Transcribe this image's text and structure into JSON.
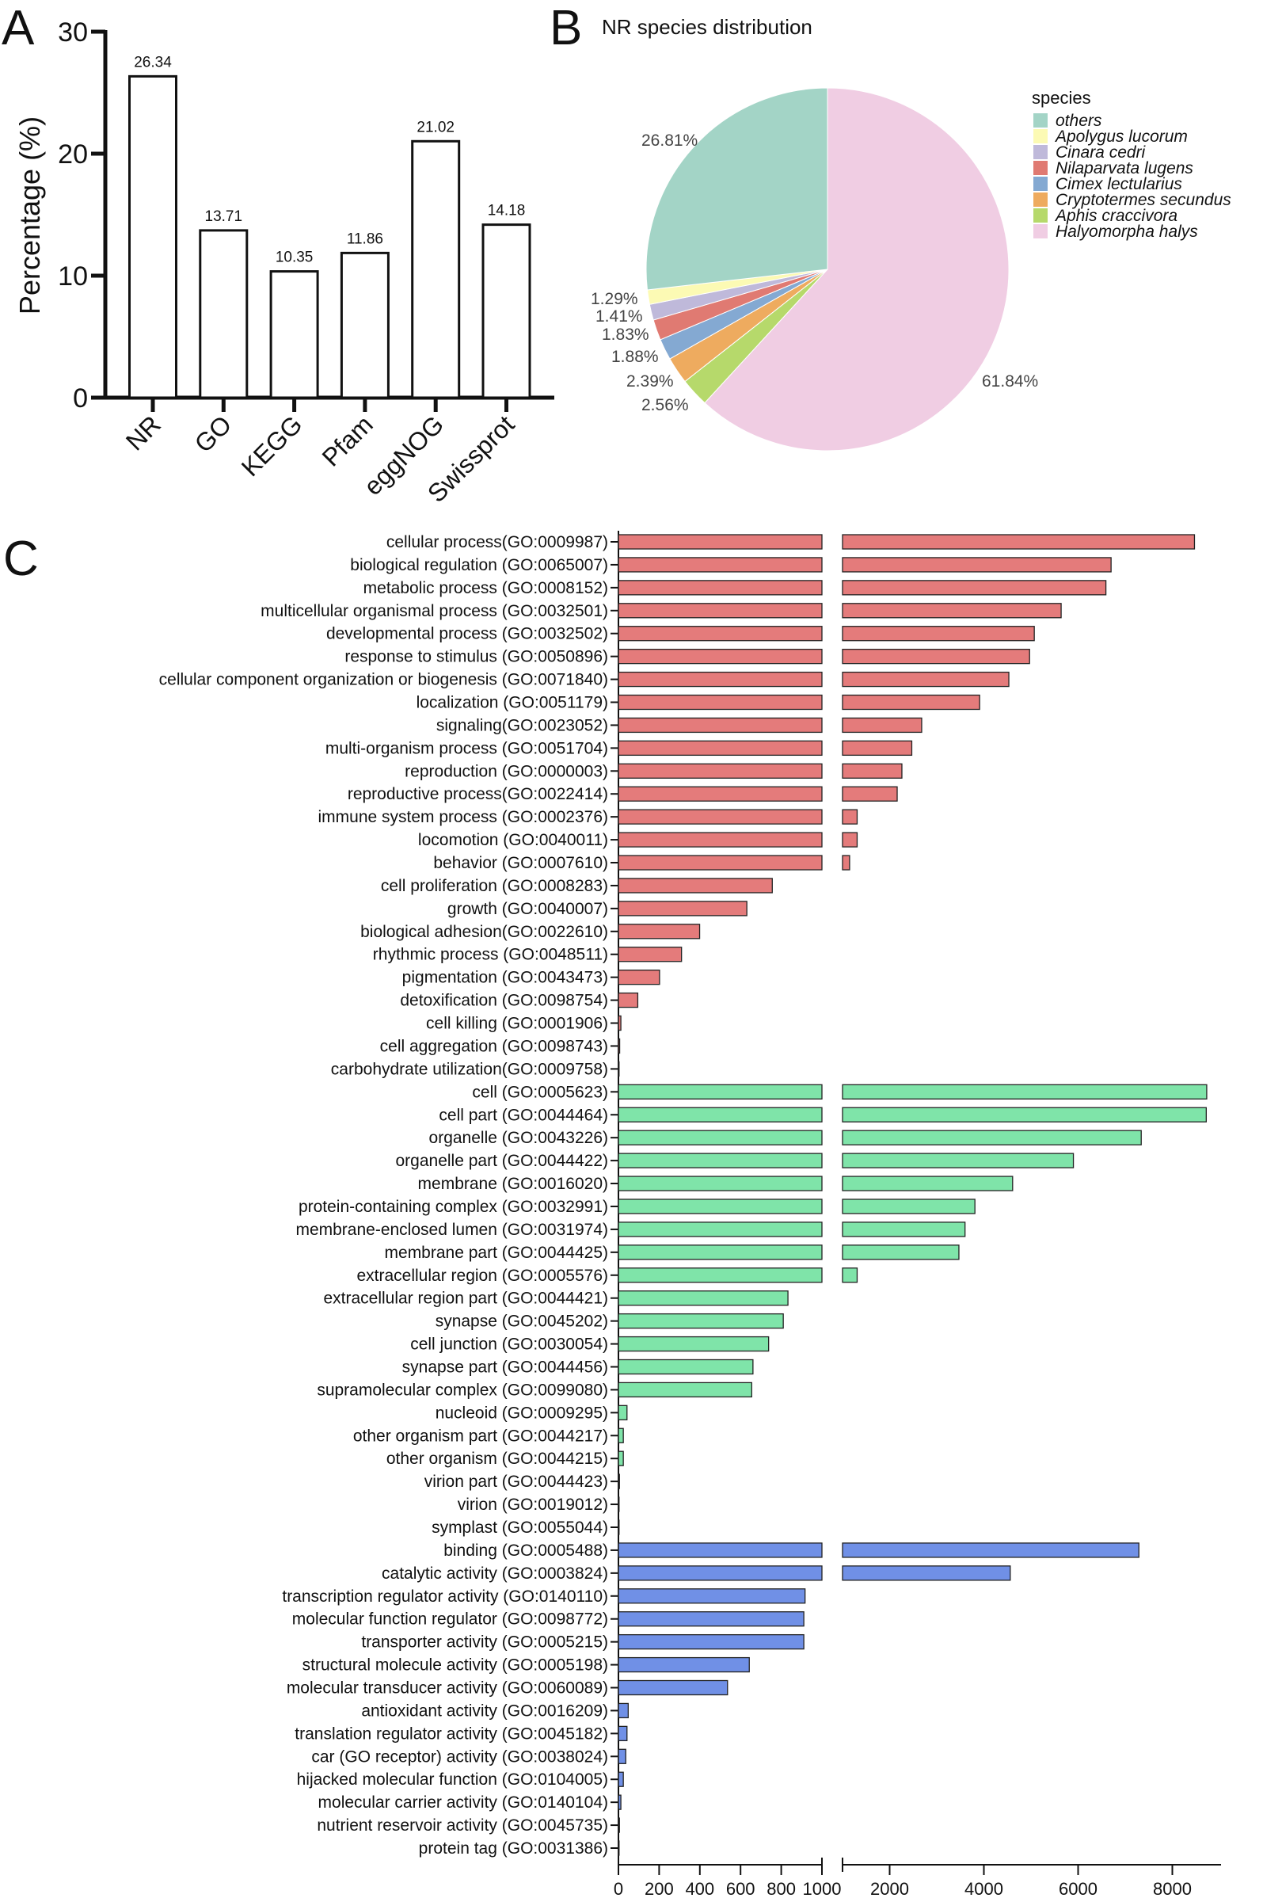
{
  "panels": {
    "a": "A",
    "b": "B",
    "c": "C"
  },
  "chart_data": [
    {
      "type": "bar",
      "title": "",
      "xlabel": "",
      "ylabel": "Percentage (%)",
      "ylim": [
        0,
        30
      ],
      "yticks": [
        "0",
        "10",
        "20",
        "30"
      ],
      "categories": [
        "NR",
        "GO",
        "KEGG",
        "Pfam",
        "eggNOG",
        "Swissprot"
      ],
      "values": [
        26.34,
        13.71,
        10.35,
        11.86,
        21.02,
        14.18
      ],
      "value_labels": [
        "26.34",
        "13.71",
        "10.35",
        "11.86",
        "21.02",
        "14.18"
      ]
    },
    {
      "type": "pie",
      "title": "NR species distribution",
      "legend_title": "species",
      "legend_position": "right",
      "labels": [
        "others",
        "Apolygus lucorum",
        "Cinara cedri",
        "Nilaparvata lugens",
        "Cimex lectularius",
        "Cryptotermes secundus",
        "Aphis craccivora",
        "Halyomorpha halys"
      ],
      "values": [
        26.81,
        1.29,
        1.41,
        1.83,
        1.88,
        2.39,
        2.56,
        61.84
      ],
      "value_labels": [
        "26.81%",
        "1.29%",
        "1.41%",
        "1.83%",
        "1.88%",
        "2.39%",
        "2.56%",
        "61.84%"
      ],
      "colors": [
        "#a3d4c6",
        "#fcfab4",
        "#bfb9da",
        "#e07a72",
        "#84a9d2",
        "#eeab5f",
        "#b6d96b",
        "#f0cde3"
      ]
    },
    {
      "type": "bar",
      "orientation": "horizontal",
      "xaxis_break": [
        1000,
        1000
      ],
      "xlim": [
        0,
        9000
      ],
      "xticks_left": [
        "0",
        "200",
        "400",
        "600",
        "800",
        "1000"
      ],
      "xticks_right": [
        "2000",
        "4000",
        "6000",
        "8000"
      ],
      "group_colors": {
        "biological_process": "#e47b7b",
        "cellular_component": "#7fe4a9",
        "molecular_function": "#7090e6"
      },
      "categories": [
        {
          "label": "cellular process(GO:0009987)",
          "value": 8470,
          "group": "biological_process"
        },
        {
          "label": "biological regulation (GO:0065007)",
          "value": 6700,
          "group": "biological_process"
        },
        {
          "label": "metabolic process (GO:0008152)",
          "value": 6590,
          "group": "biological_process"
        },
        {
          "label": "multicellular organismal process (GO:0032501)",
          "value": 5640,
          "group": "biological_process"
        },
        {
          "label": "developmental process (GO:0032502)",
          "value": 5070,
          "group": "biological_process"
        },
        {
          "label": "response to stimulus (GO:0050896)",
          "value": 4970,
          "group": "biological_process"
        },
        {
          "label": "cellular component organization or biogenesis (GO:0071840)",
          "value": 4530,
          "group": "biological_process"
        },
        {
          "label": "localization (GO:0051179)",
          "value": 3910,
          "group": "biological_process"
        },
        {
          "label": "signaling(GO:0023052)",
          "value": 2680,
          "group": "biological_process"
        },
        {
          "label": "multi-organism process (GO:0051704)",
          "value": 2470,
          "group": "biological_process"
        },
        {
          "label": "reproduction (GO:0000003)",
          "value": 2260,
          "group": "biological_process"
        },
        {
          "label": "reproductive process(GO:0022414)",
          "value": 2160,
          "group": "biological_process"
        },
        {
          "label": "immune system process (GO:0002376)",
          "value": 1310,
          "group": "biological_process"
        },
        {
          "label": "locomotion (GO:0040011)",
          "value": 1310,
          "group": "biological_process"
        },
        {
          "label": "behavior (GO:0007610)",
          "value": 1150,
          "group": "biological_process"
        },
        {
          "label": "cell proliferation (GO:0008283)",
          "value": 756,
          "group": "biological_process"
        },
        {
          "label": "growth (GO:0040007)",
          "value": 631,
          "group": "biological_process"
        },
        {
          "label": "biological adhesion(GO:0022610)",
          "value": 399,
          "group": "biological_process"
        },
        {
          "label": "rhythmic process (GO:0048511)",
          "value": 310,
          "group": "biological_process"
        },
        {
          "label": "pigmentation (GO:0043473)",
          "value": 202,
          "group": "biological_process"
        },
        {
          "label": "detoxification (GO:0098754)",
          "value": 95,
          "group": "biological_process"
        },
        {
          "label": "cell killing (GO:0001906)",
          "value": 12,
          "group": "biological_process"
        },
        {
          "label": "cell aggregation (GO:0098743)",
          "value": 6,
          "group": "biological_process"
        },
        {
          "label": "carbohydrate utilization(GO:0009758)",
          "value": 2,
          "group": "biological_process"
        },
        {
          "label": "cell (GO:0005623)",
          "value": 8730,
          "group": "cellular_component"
        },
        {
          "label": "cell part (GO:0044464)",
          "value": 8720,
          "group": "cellular_component"
        },
        {
          "label": "organelle (GO:0043226)",
          "value": 7340,
          "group": "cellular_component"
        },
        {
          "label": "organelle part (GO:0044422)",
          "value": 5900,
          "group": "cellular_component"
        },
        {
          "label": "membrane (GO:0016020)",
          "value": 4610,
          "group": "cellular_component"
        },
        {
          "label": "protein-containing complex (GO:0032991)",
          "value": 3810,
          "group": "cellular_component"
        },
        {
          "label": "membrane-enclosed lumen (GO:0031974)",
          "value": 3600,
          "group": "cellular_component"
        },
        {
          "label": "membrane part (GO:0044425)",
          "value": 3470,
          "group": "cellular_component"
        },
        {
          "label": "extracellular region (GO:0005576)",
          "value": 1310,
          "group": "cellular_component"
        },
        {
          "label": "extracellular region part (GO:0044421)",
          "value": 833,
          "group": "cellular_component"
        },
        {
          "label": "synapse (GO:0045202)",
          "value": 810,
          "group": "cellular_component"
        },
        {
          "label": "cell junction (GO:0030054)",
          "value": 738,
          "group": "cellular_component"
        },
        {
          "label": "synapse part (GO:0044456)",
          "value": 661,
          "group": "cellular_component"
        },
        {
          "label": "supramolecular complex (GO:0099080)",
          "value": 655,
          "group": "cellular_component"
        },
        {
          "label": "nucleoid (GO:0009295)",
          "value": 42,
          "group": "cellular_component"
        },
        {
          "label": "other organism part (GO:0044217)",
          "value": 24,
          "group": "cellular_component"
        },
        {
          "label": "other organism (GO:0044215)",
          "value": 24,
          "group": "cellular_component"
        },
        {
          "label": "virion part (GO:0044423)",
          "value": 5,
          "group": "cellular_component"
        },
        {
          "label": "virion (GO:0019012)",
          "value": 2,
          "group": "cellular_component"
        },
        {
          "label": "symplast (GO:0055044)",
          "value": 1,
          "group": "cellular_component"
        },
        {
          "label": "binding (GO:0005488)",
          "value": 7290,
          "group": "molecular_function"
        },
        {
          "label": "catalytic activity (GO:0003824)",
          "value": 4560,
          "group": "molecular_function"
        },
        {
          "label": "transcription regulator activity (GO:0140110)",
          "value": 917,
          "group": "molecular_function"
        },
        {
          "label": "molecular function regulator (GO:0098772)",
          "value": 911,
          "group": "molecular_function"
        },
        {
          "label": "transporter activity (GO:0005215)",
          "value": 911,
          "group": "molecular_function"
        },
        {
          "label": "structural molecule activity (GO:0005198)",
          "value": 643,
          "group": "molecular_function"
        },
        {
          "label": "molecular transducer activity (GO:0060089)",
          "value": 536,
          "group": "molecular_function"
        },
        {
          "label": "antioxidant activity (GO:0016209)",
          "value": 48,
          "group": "molecular_function"
        },
        {
          "label": "translation regulator activity (GO:0045182)",
          "value": 42,
          "group": "molecular_function"
        },
        {
          "label": "car (GO receptor) activity (GO:0038024)",
          "value": 36,
          "group": "molecular_function"
        },
        {
          "label": "hijacked molecular function (GO:0104005)",
          "value": 24,
          "group": "molecular_function"
        },
        {
          "label": "molecular carrier activity (GO:0140104)",
          "value": 12,
          "group": "molecular_function"
        },
        {
          "label": "nutrient reservoir activity (GO:0045735)",
          "value": 5,
          "group": "molecular_function"
        },
        {
          "label": "protein tag (GO:0031386)",
          "value": 2,
          "group": "molecular_function"
        }
      ]
    }
  ]
}
